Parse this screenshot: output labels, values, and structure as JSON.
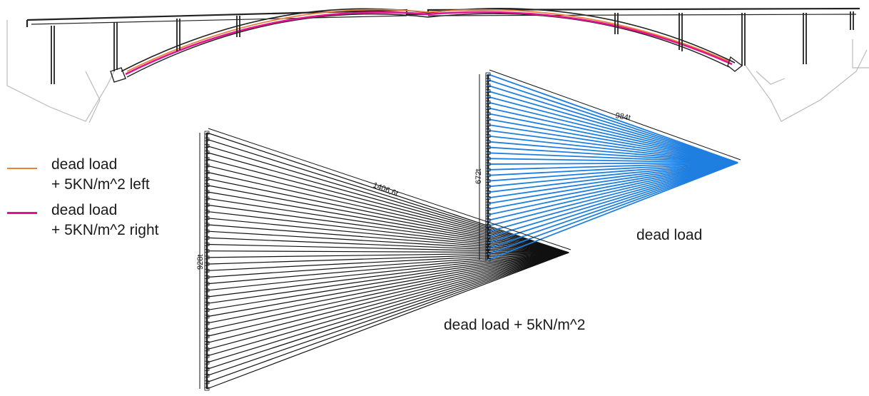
{
  "legend": {
    "items": [
      {
        "line1": "dead load",
        "line2": "+ 5KN/m^2 left",
        "color": "#e8823a"
      },
      {
        "line1": "dead load",
        "line2": "+ 5KN/m^2 right",
        "color": "#e0148c"
      }
    ]
  },
  "diagrams": {
    "blue": {
      "label": "dead load",
      "color": "#1e7fe0",
      "dim_diagonal": "984t",
      "dim_height": "672t",
      "rays": 34
    },
    "black": {
      "label": "dead load + 5kN/m^2",
      "color": "#111111",
      "dim_diagonal": "1406,6t",
      "dim_height": "928t",
      "rays": 40
    }
  },
  "bridge": {
    "line_color": "#222222",
    "ground_color": "#bbbbbb"
  }
}
